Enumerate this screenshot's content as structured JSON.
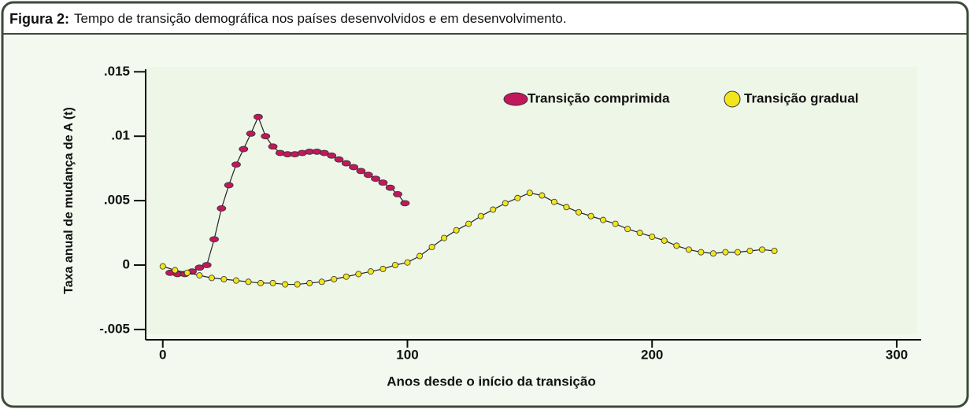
{
  "chart_data": {
    "type": "scatter_line",
    "figure_label": "Figura 2:",
    "title": "Tempo de transição demográfica nos países desenvolvidos e em desenvolvimento.",
    "xlabel": "Anos desde o início da transição",
    "ylabel": "Taxa anual de mudança de A (t)",
    "xlim": [
      -7,
      310
    ],
    "xticks": [
      0,
      100,
      200,
      300
    ],
    "ylim": [
      -0.0058,
      0.0152
    ],
    "yticks": [
      {
        "value": -0.005,
        "label": "-.005"
      },
      0,
      {
        "value": 0.005,
        "label": ".005"
      },
      {
        "value": 0.01,
        "label": ".01"
      },
      {
        "value": 0.015,
        "label": ".015"
      }
    ],
    "legend": "top right",
    "series": [
      {
        "name": "Transição comprimida",
        "color": "#c2185b",
        "x": [
          3,
          6,
          9,
          12,
          15,
          18,
          21,
          24,
          27,
          30,
          33,
          36,
          39,
          42,
          45,
          48,
          51,
          54,
          57,
          60,
          63,
          66,
          69,
          72,
          75,
          78,
          81,
          84,
          87,
          90,
          93,
          96,
          99
        ],
        "values": [
          -0.0006,
          -0.0007,
          -0.0007,
          -0.0005,
          -0.0002,
          0.0,
          0.002,
          0.0044,
          0.0062,
          0.0078,
          0.009,
          0.0102,
          0.0115,
          0.01,
          0.0092,
          0.0087,
          0.0086,
          0.0086,
          0.0087,
          0.0088,
          0.0088,
          0.0087,
          0.0085,
          0.0082,
          0.0079,
          0.0076,
          0.0073,
          0.007,
          0.0067,
          0.0064,
          0.006,
          0.0055,
          0.0048
        ]
      },
      {
        "name": "Transição gradual",
        "color": "#f2e51c",
        "x": [
          0,
          5,
          10,
          15,
          20,
          25,
          30,
          35,
          40,
          45,
          50,
          55,
          60,
          65,
          70,
          75,
          80,
          85,
          90,
          95,
          100,
          105,
          110,
          115,
          120,
          125,
          130,
          135,
          140,
          145,
          150,
          155,
          160,
          165,
          170,
          175,
          180,
          185,
          190,
          195,
          200,
          205,
          210,
          215,
          220,
          225,
          230,
          235,
          240,
          245,
          250
        ],
        "values": [
          -0.0001,
          -0.0004,
          -0.0006,
          -0.0008,
          -0.001,
          -0.0011,
          -0.0012,
          -0.0013,
          -0.0014,
          -0.0014,
          -0.0015,
          -0.0015,
          -0.0014,
          -0.0013,
          -0.0011,
          -0.0009,
          -0.0007,
          -0.0005,
          -0.0003,
          0.0,
          0.0002,
          0.0007,
          0.0014,
          0.0021,
          0.0027,
          0.0032,
          0.0038,
          0.0043,
          0.0048,
          0.0052,
          0.0056,
          0.0054,
          0.0049,
          0.0045,
          0.0041,
          0.0038,
          0.0035,
          0.0032,
          0.0028,
          0.0025,
          0.0022,
          0.0019,
          0.0015,
          0.0012,
          0.001,
          0.0009,
          0.001,
          0.001,
          0.0011,
          0.0012,
          0.0011
        ]
      }
    ]
  }
}
